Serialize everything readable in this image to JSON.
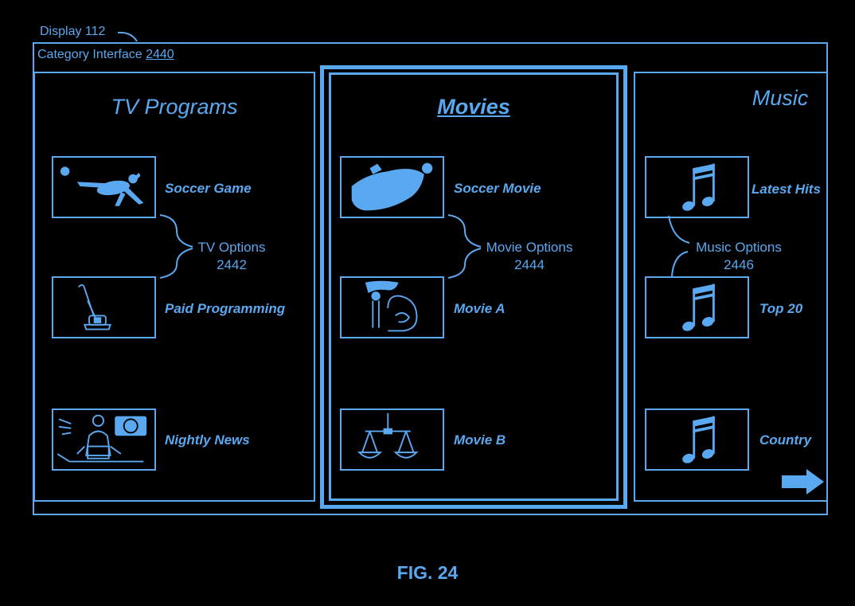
{
  "display": {
    "label": "Display 112"
  },
  "interface": {
    "label": "Category Interface",
    "number": "2440"
  },
  "columns": {
    "tv": {
      "title": "TV Programs",
      "items": [
        {
          "label": "Soccer Game",
          "icon": "soccer-player-icon"
        },
        {
          "label": "Paid Programming",
          "icon": "vacuum-cleaner-icon"
        },
        {
          "label": "Nightly News",
          "icon": "news-anchor-icon"
        }
      ],
      "options": {
        "label": "TV Options",
        "number": "2442"
      }
    },
    "movies": {
      "title": "Movies",
      "items": [
        {
          "label": "Soccer Movie",
          "icon": "soccer-goalie-icon"
        },
        {
          "label": "Movie A",
          "icon": "mermaid-wave-icon"
        },
        {
          "label": "Movie B",
          "icon": "scales-icon"
        }
      ],
      "options": {
        "label": "Movie Options",
        "number": "2444"
      }
    },
    "music": {
      "title": "Music",
      "items": [
        {
          "label": "Latest Hits",
          "icon": "music-note-icon"
        },
        {
          "label": "Top 20",
          "icon": "music-note-icon"
        },
        {
          "label": "Country",
          "icon": "music-note-icon"
        }
      ],
      "options": {
        "label": "Music Options",
        "number": "2446"
      }
    }
  },
  "figure": {
    "caption": "FIG. 24"
  },
  "colors": {
    "line": "#5aa8f0",
    "background": "#000000"
  }
}
